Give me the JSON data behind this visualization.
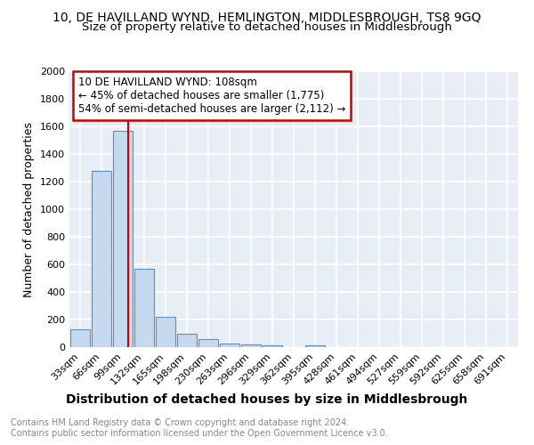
{
  "title": "10, DE HAVILLAND WYND, HEMLINGTON, MIDDLESBROUGH, TS8 9GQ",
  "subtitle": "Size of property relative to detached houses in Middlesbrough",
  "xlabel": "Distribution of detached houses by size in Middlesbrough",
  "ylabel": "Number of detached properties",
  "categories": [
    "33sqm",
    "66sqm",
    "99sqm",
    "132sqm",
    "165sqm",
    "198sqm",
    "230sqm",
    "263sqm",
    "296sqm",
    "329sqm",
    "362sqm",
    "395sqm",
    "428sqm",
    "461sqm",
    "494sqm",
    "527sqm",
    "559sqm",
    "592sqm",
    "625sqm",
    "658sqm",
    "691sqm"
  ],
  "values": [
    130,
    1280,
    1570,
    565,
    220,
    100,
    55,
    25,
    20,
    15,
    0,
    15,
    0,
    0,
    0,
    0,
    0,
    0,
    0,
    0,
    0
  ],
  "bar_color": "#c5d9ef",
  "bar_edge_color": "#5a8fc0",
  "ylim": [
    0,
    2000
  ],
  "yticks": [
    0,
    200,
    400,
    600,
    800,
    1000,
    1200,
    1400,
    1600,
    1800,
    2000
  ],
  "red_line_x": 2.27,
  "annotation_line1": "10 DE HAVILLAND WYND: 108sqm",
  "annotation_line2": "← 45% of detached houses are smaller (1,775)",
  "annotation_line3": "54% of semi-detached houses are larger (2,112) →",
  "annotation_box_color": "#cc0000",
  "footer_line1": "Contains HM Land Registry data © Crown copyright and database right 2024.",
  "footer_line2": "Contains public sector information licensed under the Open Government Licence v3.0.",
  "background_color": "#e8eef5",
  "grid_color": "#ffffff",
  "title_fontsize": 10,
  "subtitle_fontsize": 9.5,
  "xlabel_fontsize": 10,
  "ylabel_fontsize": 9,
  "tick_fontsize": 8,
  "footer_fontsize": 7,
  "ann_fontsize": 8.5
}
